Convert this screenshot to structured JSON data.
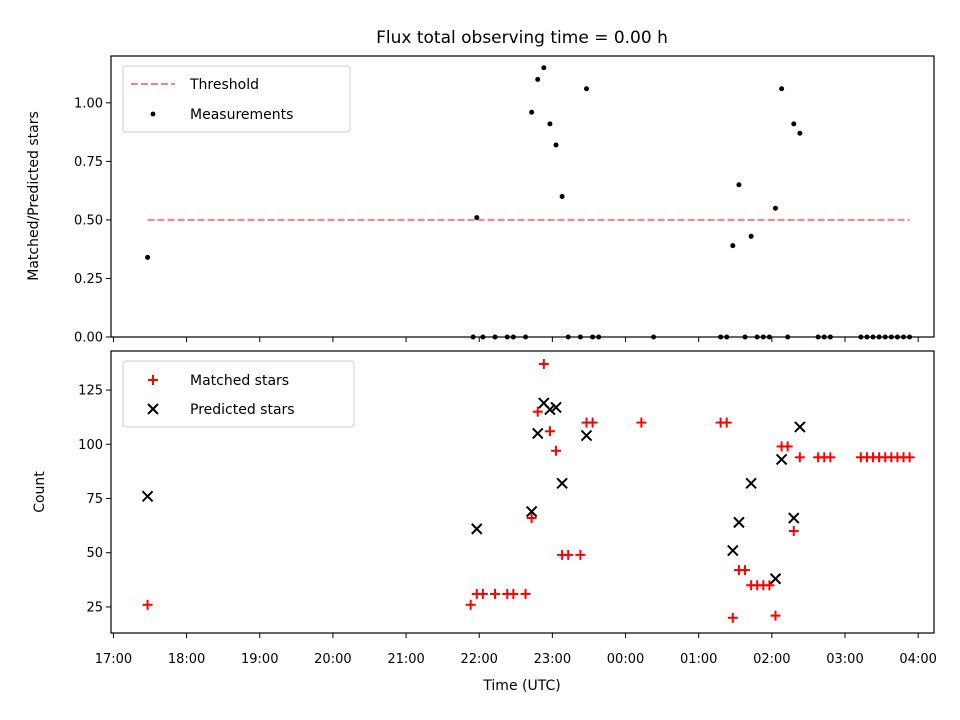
{
  "chart_data": [
    {
      "type": "scatter",
      "title": "Flux total observing time = 0.00 h",
      "xlabel": "",
      "ylabel": "Matched/Predicted stars",
      "ylim": [
        0,
        1.2
      ],
      "yticks": [
        0.0,
        0.25,
        0.5,
        0.75,
        1.0
      ],
      "ytick_labels": [
        "0.00",
        "0.25",
        "0.50",
        "0.75",
        "1.00"
      ],
      "x_axis": "time of day (UTC), continuing past midnight",
      "xlim": [
        "16:58",
        "04:13"
      ],
      "legend": {
        "placement": "upper-left",
        "entries": [
          "Threshold",
          "Measurements"
        ]
      },
      "series": [
        {
          "name": "Threshold",
          "kind": "dashed-line",
          "color": "#ff7f7f",
          "x": [
            "17:28",
            "03:53"
          ],
          "y": [
            0.5,
            0.5
          ]
        },
        {
          "name": "Measurements",
          "kind": "dot",
          "color": "#000000",
          "points": [
            [
              "17:28",
              0.34
            ],
            [
              "21:55",
              0.0
            ],
            [
              "21:58",
              0.51
            ],
            [
              "22:03",
              0.0
            ],
            [
              "22:13",
              0.0
            ],
            [
              "22:23",
              0.0
            ],
            [
              "22:28",
              0.0
            ],
            [
              "22:38",
              0.0
            ],
            [
              "22:43",
              0.96
            ],
            [
              "22:48",
              1.1
            ],
            [
              "22:53",
              1.15
            ],
            [
              "22:58",
              0.91
            ],
            [
              "23:03",
              0.82
            ],
            [
              "23:08",
              0.6
            ],
            [
              "23:13",
              0.0
            ],
            [
              "23:23",
              0.0
            ],
            [
              "23:28",
              1.06
            ],
            [
              "23:33",
              0.0
            ],
            [
              "23:38",
              0.0
            ],
            [
              "00:23",
              0.0
            ],
            [
              "01:18",
              0.0
            ],
            [
              "01:23",
              0.0
            ],
            [
              "01:28",
              0.39
            ],
            [
              "01:33",
              0.65
            ],
            [
              "01:38",
              0.0
            ],
            [
              "01:43",
              0.43
            ],
            [
              "01:48",
              0.0
            ],
            [
              "01:53",
              0.0
            ],
            [
              "01:58",
              0.0
            ],
            [
              "02:03",
              0.55
            ],
            [
              "02:08",
              1.06
            ],
            [
              "02:13",
              0.0
            ],
            [
              "02:18",
              0.91
            ],
            [
              "02:23",
              0.87
            ],
            [
              "02:38",
              0.0
            ],
            [
              "02:43",
              0.0
            ],
            [
              "02:48",
              0.0
            ],
            [
              "03:13",
              0.0
            ],
            [
              "03:18",
              0.0
            ],
            [
              "03:23",
              0.0
            ],
            [
              "03:28",
              0.0
            ],
            [
              "03:33",
              0.0
            ],
            [
              "03:38",
              0.0
            ],
            [
              "03:43",
              0.0
            ],
            [
              "03:48",
              0.0
            ],
            [
              "03:53",
              0.0
            ]
          ]
        }
      ]
    },
    {
      "type": "scatter",
      "title": "",
      "xlabel": "Time (UTC)",
      "ylabel": "Count",
      "ylim": [
        13,
        143
      ],
      "yticks": [
        25,
        50,
        75,
        100,
        125
      ],
      "ytick_labels": [
        "25",
        "50",
        "75",
        "100",
        "125"
      ],
      "x_axis": "time of day (UTC), continuing past midnight",
      "xlim": [
        "16:58",
        "04:13"
      ],
      "xticks": [
        "17:00",
        "18:00",
        "19:00",
        "20:00",
        "21:00",
        "22:00",
        "23:00",
        "00:00",
        "01:00",
        "02:00",
        "03:00",
        "04:00"
      ],
      "legend": {
        "placement": "upper-left",
        "entries": [
          "Matched stars",
          "Predicted stars"
        ]
      },
      "series": [
        {
          "name": "Matched stars",
          "kind": "plus",
          "color": "#ff0000",
          "points": [
            [
              "17:28",
              26
            ],
            [
              "21:53",
              26
            ],
            [
              "21:58",
              31
            ],
            [
              "22:03",
              31
            ],
            [
              "22:13",
              31
            ],
            [
              "22:23",
              31
            ],
            [
              "22:28",
              31
            ],
            [
              "22:38",
              31
            ],
            [
              "22:43",
              66
            ],
            [
              "22:48",
              115
            ],
            [
              "22:53",
              137
            ],
            [
              "22:58",
              106
            ],
            [
              "23:03",
              97
            ],
            [
              "23:08",
              49
            ],
            [
              "23:13",
              49
            ],
            [
              "23:23",
              49
            ],
            [
              "23:28",
              110
            ],
            [
              "23:33",
              110
            ],
            [
              "00:13",
              110
            ],
            [
              "01:18",
              110
            ],
            [
              "01:23",
              110
            ],
            [
              "01:28",
              20
            ],
            [
              "01:33",
              42
            ],
            [
              "01:38",
              42
            ],
            [
              "01:43",
              35
            ],
            [
              "01:48",
              35
            ],
            [
              "01:53",
              35
            ],
            [
              "01:58",
              35
            ],
            [
              "02:03",
              21
            ],
            [
              "02:08",
              99
            ],
            [
              "02:13",
              99
            ],
            [
              "02:18",
              60
            ],
            [
              "02:23",
              94
            ],
            [
              "02:38",
              94
            ],
            [
              "02:43",
              94
            ],
            [
              "02:48",
              94
            ],
            [
              "03:13",
              94
            ],
            [
              "03:18",
              94
            ],
            [
              "03:23",
              94
            ],
            [
              "03:28",
              94
            ],
            [
              "03:33",
              94
            ],
            [
              "03:38",
              94
            ],
            [
              "03:43",
              94
            ],
            [
              "03:48",
              94
            ],
            [
              "03:53",
              94
            ]
          ]
        },
        {
          "name": "Predicted stars",
          "kind": "cross",
          "color": "#000000",
          "points": [
            [
              "17:28",
              76
            ],
            [
              "21:58",
              61
            ],
            [
              "22:43",
              69
            ],
            [
              "22:48",
              105
            ],
            [
              "22:53",
              119
            ],
            [
              "22:58",
              116
            ],
            [
              "23:03",
              117
            ],
            [
              "23:08",
              82
            ],
            [
              "23:28",
              104
            ],
            [
              "01:28",
              51
            ],
            [
              "01:33",
              64
            ],
            [
              "01:43",
              82
            ],
            [
              "02:03",
              38
            ],
            [
              "02:08",
              93
            ],
            [
              "02:18",
              66
            ],
            [
              "02:23",
              108
            ]
          ]
        }
      ]
    }
  ]
}
